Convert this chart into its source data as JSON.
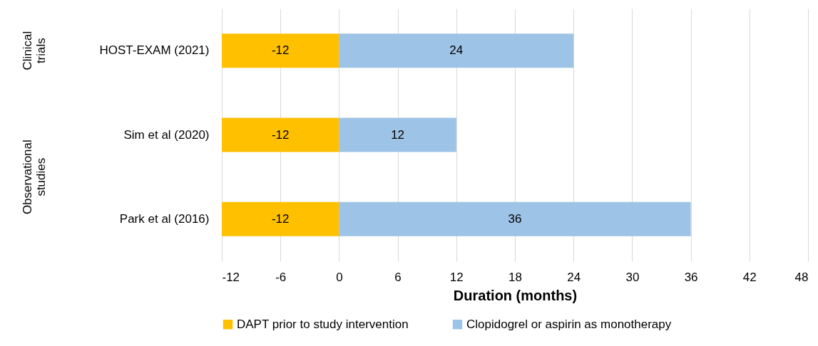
{
  "chart_data": {
    "type": "bar",
    "orientation": "horizontal",
    "stacked": true,
    "xlabel": "Duration (months)",
    "categories": [
      "HOST-EXAM (2021)",
      "Sim et al (2020)",
      "Park et al (2016)"
    ],
    "series": [
      {
        "name": "DAPT prior to study intervention",
        "color": "#ffc000",
        "values": [
          -12,
          -12,
          -12
        ]
      },
      {
        "name": "Clopidogrel or aspirin as monotherapy",
        "color": "#9dc3e6",
        "values": [
          24,
          12,
          36
        ]
      }
    ],
    "xlim": [
      -12,
      48
    ],
    "xticks": [
      -12,
      -6,
      0,
      6,
      12,
      18,
      24,
      30,
      36,
      42,
      48
    ],
    "grid": "x",
    "legend": "bottom",
    "data_labels": true,
    "annotations": [
      "Clinical trials",
      "Observational studies"
    ]
  }
}
